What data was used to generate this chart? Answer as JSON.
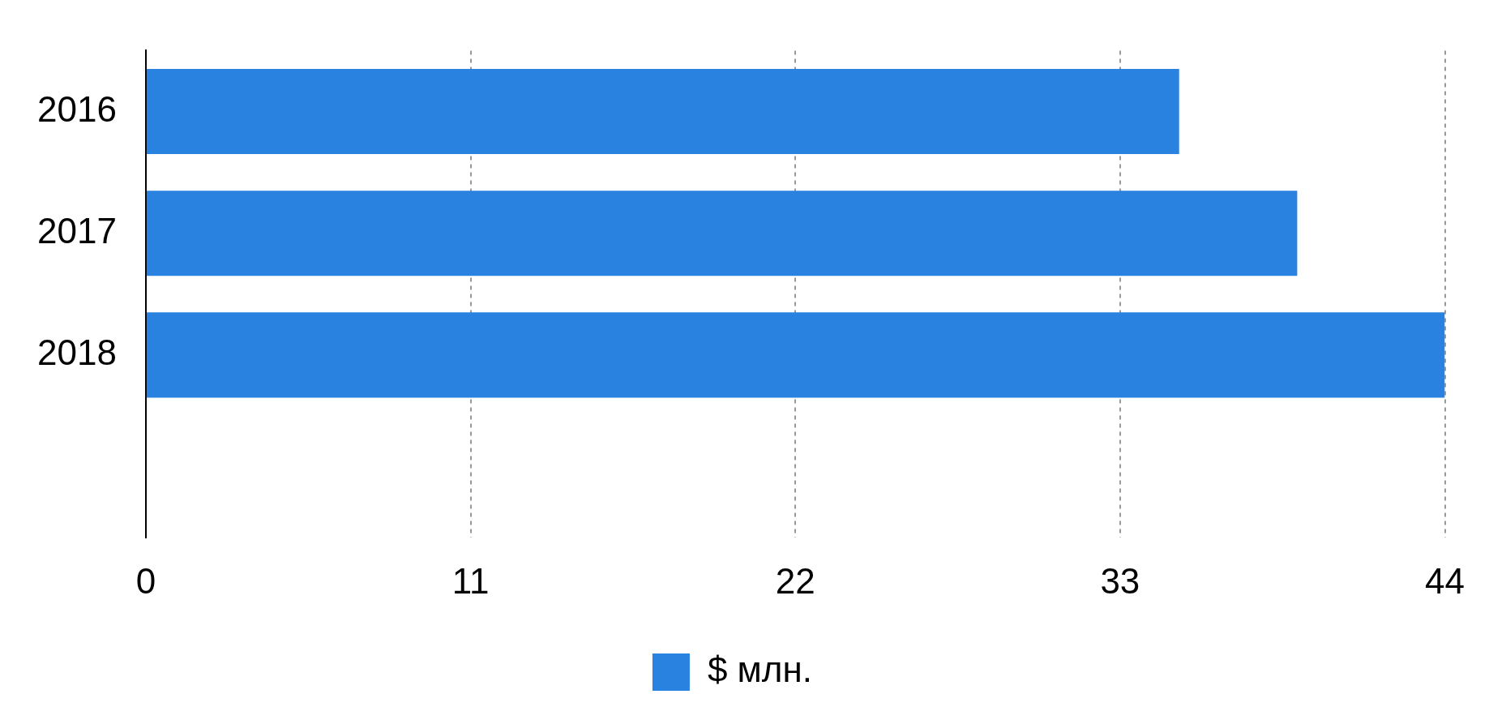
{
  "chart_data": {
    "type": "bar",
    "orientation": "horizontal",
    "categories": [
      "2016",
      "2017",
      "2018",
      null
    ],
    "series": [
      {
        "name": "$ млн.",
        "color": "#2a82e0",
        "values": [
          35,
          39,
          44,
          null
        ]
      }
    ],
    "xlim": [
      0,
      44
    ],
    "xticks": [
      0,
      11,
      22,
      33,
      44
    ],
    "grid": "x",
    "legend": "bottom"
  }
}
